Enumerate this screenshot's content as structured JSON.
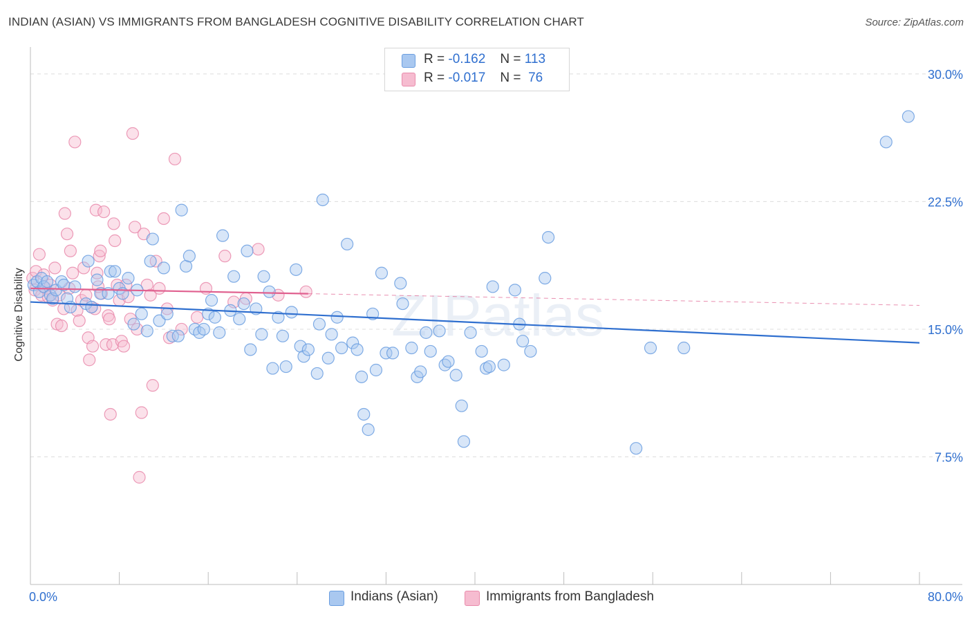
{
  "header": {
    "title": "INDIAN (ASIAN) VS IMMIGRANTS FROM BANGLADESH COGNITIVE DISABILITY CORRELATION CHART",
    "source": "Source: ZipAtlas.com"
  },
  "watermark": "ZIPatlas",
  "colors": {
    "blue_fill": "#a9c8f0",
    "blue_stroke": "#6a9ee0",
    "blue_line": "#2f6fcf",
    "pink_fill": "#f6bcd0",
    "pink_stroke": "#e98aab",
    "pink_line": "#e0608f",
    "axis_text": "#2f6fcf",
    "grid": "#dcdcdc"
  },
  "legend": {
    "series": [
      {
        "r_label": "R =",
        "r_value": "-0.162",
        "n_label": "N =",
        "n_value": "113"
      },
      {
        "r_label": "R =",
        "r_value": "-0.017",
        "n_label": "N =",
        "n_value": "76"
      }
    ]
  },
  "bottom_legend": [
    "Indians (Asian)",
    "Immigrants from Bangladesh"
  ],
  "chart_data": {
    "type": "scatter",
    "title": "INDIAN (ASIAN) VS IMMIGRANTS FROM BANGLADESH COGNITIVE DISABILITY CORRELATION CHART",
    "xlabel": "",
    "ylabel": "Cognitive Disability",
    "xlim": [
      0,
      80
    ],
    "ylim": [
      0,
      31.5
    ],
    "x_tick_labels": [
      "0.0%",
      "80.0%"
    ],
    "y_ticks": [
      7.5,
      15.0,
      22.5,
      30.0
    ],
    "y_tick_labels": [
      "7.5%",
      "15.0%",
      "22.5%",
      "30.0%"
    ],
    "grid": true,
    "legend_placement": "top-center",
    "series": [
      {
        "name": "Indians (Asian)",
        "trend": {
          "x": [
            0,
            80
          ],
          "y": [
            16.6,
            14.2
          ],
          "dashed_from": null
        },
        "points": [
          [
            0.3,
            17.6
          ],
          [
            0.6,
            17.8
          ],
          [
            0.8,
            17.2
          ],
          [
            1.0,
            18.0
          ],
          [
            1.2,
            17.5
          ],
          [
            1.5,
            17.8
          ],
          [
            1.8,
            17.0
          ],
          [
            2.0,
            16.8
          ],
          [
            2.3,
            17.3
          ],
          [
            2.8,
            17.8
          ],
          [
            3.0,
            17.6
          ],
          [
            3.3,
            16.8
          ],
          [
            3.6,
            16.3
          ],
          [
            4.0,
            17.5
          ],
          [
            5.0,
            16.5
          ],
          [
            5.2,
            19.0
          ],
          [
            5.5,
            16.3
          ],
          [
            6.0,
            17.9
          ],
          [
            6.3,
            17.1
          ],
          [
            7.0,
            17.1
          ],
          [
            7.2,
            18.4
          ],
          [
            7.6,
            18.4
          ],
          [
            8.0,
            17.4
          ],
          [
            8.3,
            17.1
          ],
          [
            8.8,
            18.0
          ],
          [
            9.3,
            15.3
          ],
          [
            9.6,
            17.3
          ],
          [
            10.0,
            15.9
          ],
          [
            10.5,
            14.9
          ],
          [
            10.8,
            19.0
          ],
          [
            11.0,
            20.3
          ],
          [
            11.6,
            15.5
          ],
          [
            12.0,
            18.6
          ],
          [
            12.3,
            15.9
          ],
          [
            12.8,
            14.6
          ],
          [
            13.3,
            14.6
          ],
          [
            13.6,
            22.0
          ],
          [
            14.0,
            18.7
          ],
          [
            14.3,
            19.3
          ],
          [
            14.8,
            15.0
          ],
          [
            15.2,
            14.8
          ],
          [
            15.6,
            15.0
          ],
          [
            16.0,
            15.9
          ],
          [
            16.3,
            16.7
          ],
          [
            16.6,
            15.7
          ],
          [
            17.0,
            14.8
          ],
          [
            17.3,
            20.5
          ],
          [
            18.0,
            16.1
          ],
          [
            18.3,
            18.1
          ],
          [
            18.8,
            15.6
          ],
          [
            19.2,
            16.5
          ],
          [
            19.5,
            19.6
          ],
          [
            19.8,
            13.8
          ],
          [
            20.3,
            16.2
          ],
          [
            20.8,
            14.7
          ],
          [
            21.0,
            18.1
          ],
          [
            21.5,
            17.2
          ],
          [
            21.8,
            12.7
          ],
          [
            22.3,
            15.7
          ],
          [
            22.7,
            14.6
          ],
          [
            23.0,
            12.8
          ],
          [
            23.5,
            16.0
          ],
          [
            23.9,
            18.5
          ],
          [
            24.3,
            14.0
          ],
          [
            24.6,
            13.4
          ],
          [
            25.0,
            13.8
          ],
          [
            25.8,
            12.4
          ],
          [
            26.0,
            15.3
          ],
          [
            26.3,
            22.6
          ],
          [
            26.8,
            13.3
          ],
          [
            27.1,
            14.7
          ],
          [
            27.6,
            15.7
          ],
          [
            28.0,
            13.9
          ],
          [
            28.5,
            20.0
          ],
          [
            29.0,
            14.2
          ],
          [
            29.4,
            13.8
          ],
          [
            29.8,
            12.2
          ],
          [
            30.0,
            10.0
          ],
          [
            30.4,
            9.1
          ],
          [
            30.8,
            15.9
          ],
          [
            31.1,
            12.6
          ],
          [
            31.6,
            18.3
          ],
          [
            32.0,
            13.6
          ],
          [
            32.6,
            13.6
          ],
          [
            33.3,
            17.7
          ],
          [
            33.5,
            16.5
          ],
          [
            34.3,
            13.9
          ],
          [
            34.8,
            12.2
          ],
          [
            35.1,
            12.5
          ],
          [
            35.6,
            14.8
          ],
          [
            36.0,
            13.7
          ],
          [
            36.8,
            14.9
          ],
          [
            37.3,
            12.9
          ],
          [
            37.6,
            13.1
          ],
          [
            38.3,
            12.3
          ],
          [
            38.8,
            10.5
          ],
          [
            39.0,
            8.4
          ],
          [
            39.6,
            14.8
          ],
          [
            40.6,
            13.7
          ],
          [
            41.0,
            12.7
          ],
          [
            41.3,
            12.8
          ],
          [
            41.6,
            17.5
          ],
          [
            42.6,
            12.9
          ],
          [
            43.6,
            17.3
          ],
          [
            44.0,
            15.3
          ],
          [
            44.3,
            14.3
          ],
          [
            45.0,
            13.7
          ],
          [
            46.3,
            18.0
          ],
          [
            46.6,
            20.4
          ],
          [
            55.8,
            13.9
          ],
          [
            58.8,
            13.9
          ],
          [
            77.0,
            26.0
          ],
          [
            79.0,
            27.5
          ],
          [
            54.5,
            8.0
          ]
        ]
      },
      {
        "name": "Immigrants from Bangladesh",
        "trend": {
          "x": [
            0,
            80
          ],
          "y": [
            17.4,
            16.4
          ],
          "dashed_from": 25
        },
        "points": [
          [
            0.2,
            18.0
          ],
          [
            0.4,
            17.3
          ],
          [
            0.5,
            18.4
          ],
          [
            0.8,
            19.4
          ],
          [
            1.0,
            17.0
          ],
          [
            1.2,
            18.2
          ],
          [
            1.4,
            17.4
          ],
          [
            1.6,
            16.9
          ],
          [
            1.8,
            17.6
          ],
          [
            2.0,
            16.7
          ],
          [
            2.2,
            18.6
          ],
          [
            2.4,
            15.3
          ],
          [
            2.6,
            17.0
          ],
          [
            2.8,
            15.2
          ],
          [
            3.0,
            16.2
          ],
          [
            3.1,
            21.8
          ],
          [
            3.3,
            20.6
          ],
          [
            3.5,
            17.4
          ],
          [
            3.6,
            19.6
          ],
          [
            3.8,
            18.3
          ],
          [
            4.0,
            26.0
          ],
          [
            4.2,
            16.1
          ],
          [
            4.4,
            15.5
          ],
          [
            4.6,
            16.7
          ],
          [
            4.8,
            18.6
          ],
          [
            5.0,
            17.0
          ],
          [
            5.2,
            14.5
          ],
          [
            5.3,
            13.2
          ],
          [
            5.5,
            16.3
          ],
          [
            5.6,
            14.0
          ],
          [
            5.8,
            16.2
          ],
          [
            5.9,
            22.0
          ],
          [
            6.0,
            18.3
          ],
          [
            6.2,
            19.3
          ],
          [
            6.3,
            19.6
          ],
          [
            6.4,
            17.1
          ],
          [
            6.6,
            21.9
          ],
          [
            6.8,
            14.1
          ],
          [
            7.0,
            15.8
          ],
          [
            7.1,
            15.6
          ],
          [
            7.2,
            10.0
          ],
          [
            7.4,
            14.1
          ],
          [
            7.5,
            21.2
          ],
          [
            7.6,
            20.2
          ],
          [
            7.8,
            17.6
          ],
          [
            8.0,
            16.7
          ],
          [
            8.2,
            14.3
          ],
          [
            8.4,
            14.0
          ],
          [
            8.6,
            17.6
          ],
          [
            8.8,
            16.9
          ],
          [
            9.0,
            15.6
          ],
          [
            9.2,
            26.5
          ],
          [
            9.4,
            21.0
          ],
          [
            9.6,
            15.0
          ],
          [
            9.8,
            6.3
          ],
          [
            10.0,
            10.1
          ],
          [
            10.2,
            20.6
          ],
          [
            10.5,
            17.6
          ],
          [
            10.8,
            17.0
          ],
          [
            11.0,
            11.7
          ],
          [
            11.3,
            19.0
          ],
          [
            11.6,
            17.4
          ],
          [
            12.0,
            21.5
          ],
          [
            12.3,
            16.2
          ],
          [
            12.5,
            14.5
          ],
          [
            13.0,
            25.0
          ],
          [
            13.6,
            15.0
          ],
          [
            15.0,
            15.7
          ],
          [
            15.8,
            17.4
          ],
          [
            17.5,
            19.3
          ],
          [
            18.3,
            16.6
          ],
          [
            19.4,
            16.8
          ],
          [
            20.5,
            19.7
          ],
          [
            22.3,
            17.0
          ],
          [
            24.8,
            17.2
          ],
          [
            6.1,
            17.5
          ]
        ]
      }
    ]
  }
}
